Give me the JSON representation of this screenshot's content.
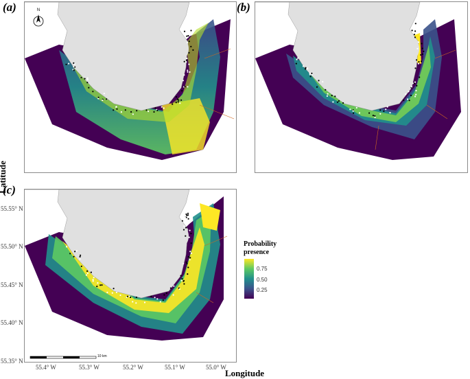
{
  "panels": [
    {
      "id": "a",
      "label": "(a)"
    },
    {
      "id": "b",
      "label": "(b)"
    },
    {
      "id": "c",
      "label": "(c)"
    }
  ],
  "axes": {
    "x_title": "Longitude",
    "y_title": "Latitude",
    "lat_ticks": [
      "55.55° N",
      "55.50° N",
      "55.45° N",
      "55.40° N",
      "55.35° N"
    ],
    "lon_ticks": [
      "55.4° W",
      "55.3° W",
      "55.2° W",
      "55.1° W",
      "55.0° W"
    ]
  },
  "legend": {
    "title_line1": "Probability",
    "title_line2": "presence",
    "ticks": [
      "0.75",
      "0.50",
      "0.25"
    ],
    "colorscale": [
      "#440154",
      "#3b528b",
      "#21908c",
      "#5dc963",
      "#fde725"
    ]
  },
  "north_arrow": {
    "label": "N"
  },
  "scale_bar": {
    "label": "10 km"
  },
  "colors": {
    "land": "#e0e0e0",
    "low": "#440154",
    "mid": "#21908c",
    "high": "#fde725",
    "presence_point": "#000000",
    "absence_point": "#ffffff",
    "boundary": "#d2691e"
  }
}
